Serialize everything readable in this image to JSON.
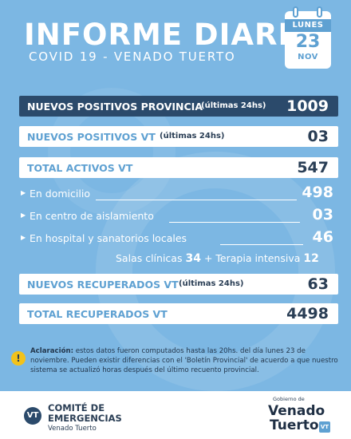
{
  "header": {
    "title": "INFORME DIARIO",
    "subtitle": "COVID 19 - VENADO TUERTO"
  },
  "calendar": {
    "weekday": "LUNES",
    "day": "23",
    "month": "NOV"
  },
  "stats": {
    "provincia": {
      "label": "NUEVOS POSITIVOS PROVINCIA",
      "note": "(últimas 24hs)",
      "value": "1009"
    },
    "nuevos_vt": {
      "label": "NUEVOS POSITIVOS VT",
      "note": "(últimas 24hs)",
      "value": "03"
    },
    "activos_vt": {
      "label": "TOTAL ACTIVOS VT",
      "value": "547"
    },
    "domicilio": {
      "label": "En domicilio",
      "value": "498"
    },
    "aislamiento": {
      "label": "En centro de aislamiento",
      "value": "03"
    },
    "hospital": {
      "label": "En hospital y sanatorios locales",
      "value": "46"
    },
    "salas": {
      "label": "Salas clínicas",
      "value": "34",
      "plus": "+",
      "terapia_label": "Terapia intensiva",
      "terapia_value": "12"
    },
    "recuperados_nuevos": {
      "label": "NUEVOS RECUPERADOS VT",
      "note": "(últimas 24hs)",
      "value": "63"
    },
    "recuperados_total": {
      "label": "TOTAL RECUPERADOS VT",
      "value": "4498"
    }
  },
  "disclaimer": {
    "icon": "exclamation-icon",
    "lead": "Aclaración:",
    "text": "estos datos fueron computados hasta las 20hs. del día lunes 23 de noviembre. Pueden existir diferencias con el 'Boletín Provincial' de acuerdo a que nuestro sistema se actualizó horas después del último recuento provincial."
  },
  "footer": {
    "committee_logo": "VT",
    "committee_line1": "COMITÉ DE",
    "committee_line2": "EMERGENCIAS",
    "committee_city": "Venado Tuerto",
    "gov_small": "Gobierno de",
    "gov_line1": "Venado",
    "gov_line2": "Tuerto",
    "gov_badge": "VT"
  },
  "colors": {
    "background": "#7cb7e3",
    "accent": "#5fa1d2",
    "dark": "#2b4a6b",
    "warning": "#f2c21b"
  }
}
